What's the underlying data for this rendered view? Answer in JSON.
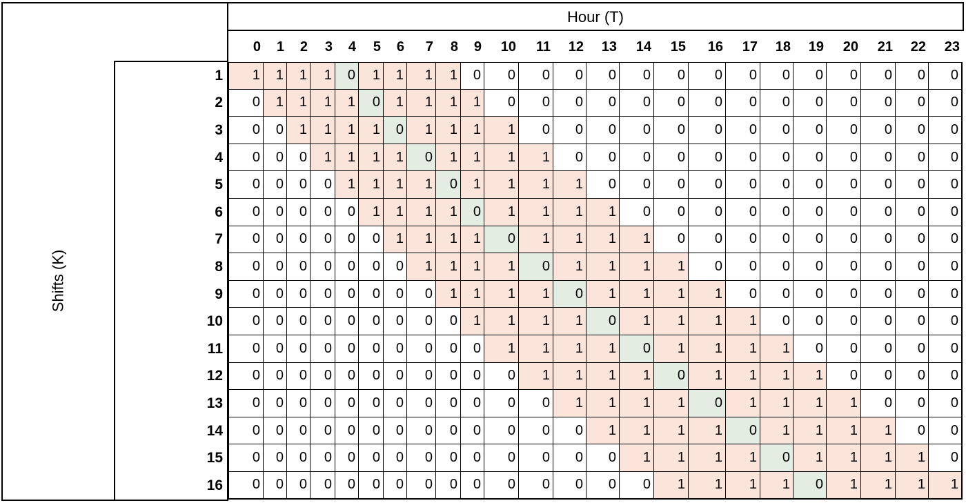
{
  "title": "Hour (T)",
  "row_axis_label": "Shifts (K)",
  "hours": [
    "0",
    "1",
    "2",
    "3",
    "4",
    "5",
    "6",
    "7",
    "8",
    "9",
    "10",
    "11",
    "12",
    "13",
    "14",
    "15",
    "16",
    "17",
    "18",
    "19",
    "20",
    "21",
    "22",
    "23"
  ],
  "shifts": [
    "1",
    "2",
    "3",
    "4",
    "5",
    "6",
    "7",
    "8",
    "9",
    "10",
    "11",
    "12",
    "13",
    "14",
    "15",
    "16"
  ],
  "colors": {
    "shift_block": "#fbe4d9",
    "break_hour": "#e3ede1",
    "border": "#000000"
  },
  "matrix": [
    [
      "1",
      "1",
      "1",
      "1",
      "0",
      "1",
      "1",
      "1",
      "1",
      "0",
      "0",
      "0",
      "0",
      "0",
      "0",
      "0",
      "0",
      "0",
      "0",
      "0",
      "0",
      "0",
      "0",
      "0"
    ],
    [
      "0",
      "1",
      "1",
      "1",
      "1",
      "0",
      "1",
      "1",
      "1",
      "1",
      "0",
      "0",
      "0",
      "0",
      "0",
      "0",
      "0",
      "0",
      "0",
      "0",
      "0",
      "0",
      "0",
      "0"
    ],
    [
      "0",
      "0",
      "1",
      "1",
      "1",
      "1",
      "0",
      "1",
      "1",
      "1",
      "1",
      "0",
      "0",
      "0",
      "0",
      "0",
      "0",
      "0",
      "0",
      "0",
      "0",
      "0",
      "0",
      "0"
    ],
    [
      "0",
      "0",
      "0",
      "1",
      "1",
      "1",
      "1",
      "0",
      "1",
      "1",
      "1",
      "1",
      "0",
      "0",
      "0",
      "0",
      "0",
      "0",
      "0",
      "0",
      "0",
      "0",
      "0",
      "0"
    ],
    [
      "0",
      "0",
      "0",
      "0",
      "1",
      "1",
      "1",
      "1",
      "0",
      "1",
      "1",
      "1",
      "1",
      "0",
      "0",
      "0",
      "0",
      "0",
      "0",
      "0",
      "0",
      "0",
      "0",
      "0"
    ],
    [
      "0",
      "0",
      "0",
      "0",
      "0",
      "1",
      "1",
      "1",
      "1",
      "0",
      "1",
      "1",
      "1",
      "1",
      "0",
      "0",
      "0",
      "0",
      "0",
      "0",
      "0",
      "0",
      "0",
      "0"
    ],
    [
      "0",
      "0",
      "0",
      "0",
      "0",
      "0",
      "1",
      "1",
      "1",
      "1",
      "0",
      "1",
      "1",
      "1",
      "1",
      "0",
      "0",
      "0",
      "0",
      "0",
      "0",
      "0",
      "0",
      "0"
    ],
    [
      "0",
      "0",
      "0",
      "0",
      "0",
      "0",
      "0",
      "1",
      "1",
      "1",
      "1",
      "0",
      "1",
      "1",
      "1",
      "1",
      "0",
      "0",
      "0",
      "0",
      "0",
      "0",
      "0",
      "0"
    ],
    [
      "0",
      "0",
      "0",
      "0",
      "0",
      "0",
      "0",
      "0",
      "1",
      "1",
      "1",
      "1",
      "0",
      "1",
      "1",
      "1",
      "1",
      "0",
      "0",
      "0",
      "0",
      "0",
      "0",
      "0"
    ],
    [
      "0",
      "0",
      "0",
      "0",
      "0",
      "0",
      "0",
      "0",
      "0",
      "1",
      "1",
      "1",
      "1",
      "0",
      "1",
      "1",
      "1",
      "1",
      "0",
      "0",
      "0",
      "0",
      "0",
      "0"
    ],
    [
      "0",
      "0",
      "0",
      "0",
      "0",
      "0",
      "0",
      "0",
      "0",
      "0",
      "1",
      "1",
      "1",
      "1",
      "0",
      "1",
      "1",
      "1",
      "1",
      "0",
      "0",
      "0",
      "0",
      "0"
    ],
    [
      "0",
      "0",
      "0",
      "0",
      "0",
      "0",
      "0",
      "0",
      "0",
      "0",
      "0",
      "1",
      "1",
      "1",
      "1",
      "0",
      "1",
      "1",
      "1",
      "1",
      "0",
      "0",
      "0",
      "0"
    ],
    [
      "0",
      "0",
      "0",
      "0",
      "0",
      "0",
      "0",
      "0",
      "0",
      "0",
      "0",
      "0",
      "1",
      "1",
      "1",
      "1",
      "0",
      "1",
      "1",
      "1",
      "1",
      "0",
      "0",
      "0"
    ],
    [
      "0",
      "0",
      "0",
      "0",
      "0",
      "0",
      "0",
      "0",
      "0",
      "0",
      "0",
      "0",
      "0",
      "1",
      "1",
      "1",
      "1",
      "0",
      "1",
      "1",
      "1",
      "1",
      "0",
      "0"
    ],
    [
      "0",
      "0",
      "0",
      "0",
      "0",
      "0",
      "0",
      "0",
      "0",
      "0",
      "0",
      "0",
      "0",
      "0",
      "1",
      "1",
      "1",
      "1",
      "0",
      "1",
      "1",
      "1",
      "1",
      "0"
    ],
    [
      "0",
      "0",
      "0",
      "0",
      "0",
      "0",
      "0",
      "0",
      "0",
      "0",
      "0",
      "0",
      "0",
      "0",
      "0",
      "1",
      "1",
      "1",
      "1",
      "0",
      "1",
      "1",
      "1",
      "1"
    ]
  ]
}
